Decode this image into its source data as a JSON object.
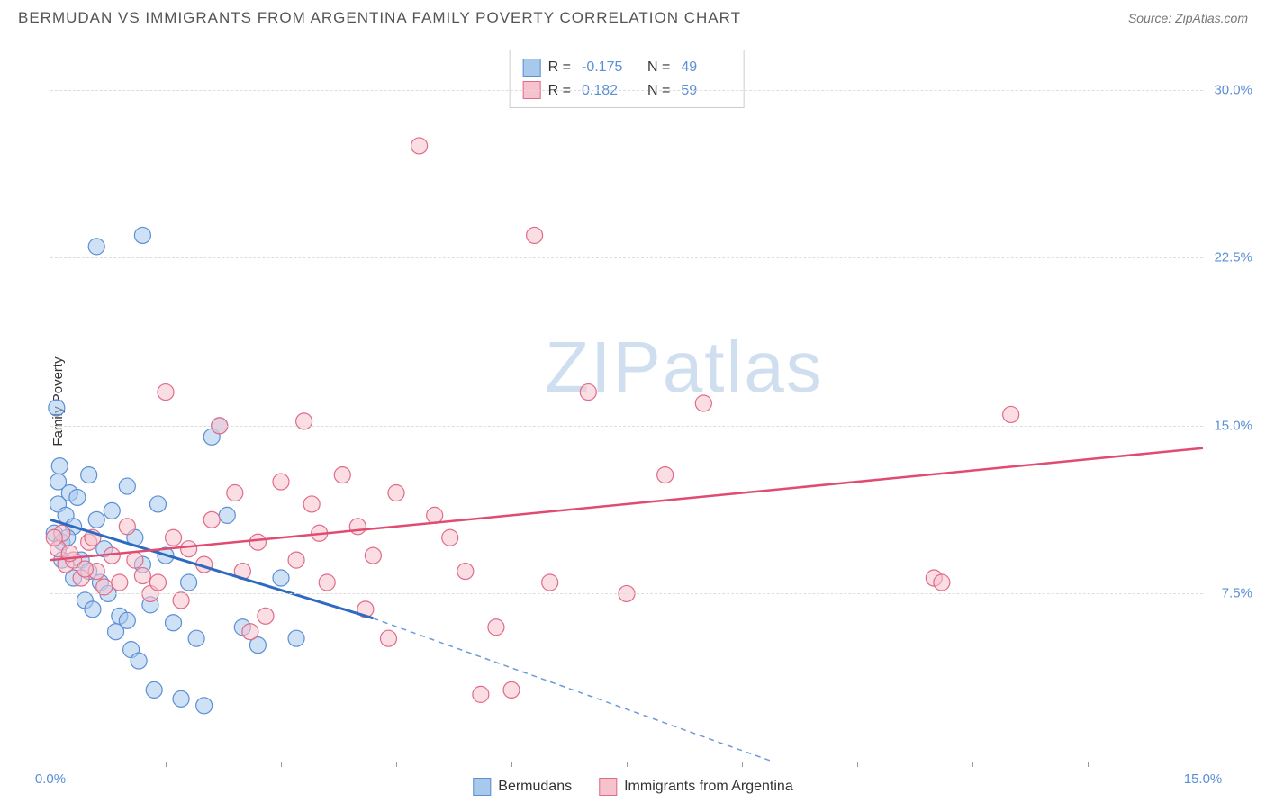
{
  "header": {
    "title": "BERMUDAN VS IMMIGRANTS FROM ARGENTINA FAMILY POVERTY CORRELATION CHART",
    "source_prefix": "Source: ",
    "source_name": "ZipAtlas.com"
  },
  "watermark": {
    "zip": "ZIP",
    "atlas": "atlas"
  },
  "chart": {
    "type": "scatter",
    "y_axis_label": "Family Poverty",
    "background_color": "#ffffff",
    "grid_color": "#dddddd",
    "axis_color": "#999999",
    "text_color_axis": "#5b8fd6",
    "x_range": [
      0,
      15
    ],
    "y_range": [
      0,
      32
    ],
    "y_ticks": [
      {
        "v": 7.5,
        "label": "7.5%"
      },
      {
        "v": 15.0,
        "label": "15.0%"
      },
      {
        "v": 22.5,
        "label": "22.5%"
      },
      {
        "v": 30.0,
        "label": "30.0%"
      }
    ],
    "x_ticks_minor": [
      1.5,
      3,
      4.5,
      6,
      7.5,
      9,
      10.5,
      12,
      13.5
    ],
    "x_labels": [
      {
        "v": 0,
        "label": "0.0%"
      },
      {
        "v": 15,
        "label": "15.0%"
      }
    ],
    "series": [
      {
        "id": "bermudans",
        "label": "Bermudans",
        "fill_color": "#a8c8ec",
        "stroke_color": "#5b8fd6",
        "line_color": "#2e6bc0",
        "line_dash_color": "#6a9bd8",
        "marker_radius": 9,
        "marker_opacity": 0.55,
        "R": "-0.175",
        "N": "49",
        "trend": {
          "x1": 0,
          "y1": 10.8,
          "x2": 4.2,
          "y2": 6.4,
          "solid_end_x": 4.2,
          "dash_end_x": 9.4,
          "dash_end_y": 0
        },
        "points": [
          [
            0.05,
            10.2
          ],
          [
            0.1,
            11.5
          ],
          [
            0.15,
            9.8
          ],
          [
            0.1,
            12.5
          ],
          [
            0.2,
            11.0
          ],
          [
            0.12,
            13.2
          ],
          [
            0.3,
            10.5
          ],
          [
            0.25,
            12.0
          ],
          [
            0.35,
            11.8
          ],
          [
            0.08,
            15.8
          ],
          [
            0.4,
            9.0
          ],
          [
            0.5,
            8.5
          ],
          [
            0.45,
            7.2
          ],
          [
            0.55,
            6.8
          ],
          [
            0.6,
            10.8
          ],
          [
            0.7,
            9.5
          ],
          [
            0.65,
            8.0
          ],
          [
            0.8,
            11.2
          ],
          [
            0.75,
            7.5
          ],
          [
            0.9,
            6.5
          ],
          [
            0.85,
            5.8
          ],
          [
            1.0,
            12.3
          ],
          [
            1.1,
            10.0
          ],
          [
            1.2,
            8.8
          ],
          [
            1.3,
            7.0
          ],
          [
            1.05,
            5.0
          ],
          [
            1.15,
            4.5
          ],
          [
            1.4,
            11.5
          ],
          [
            1.5,
            9.2
          ],
          [
            1.6,
            6.2
          ],
          [
            1.8,
            8.0
          ],
          [
            1.9,
            5.5
          ],
          [
            2.0,
            2.5
          ],
          [
            2.1,
            14.5
          ],
          [
            1.7,
            2.8
          ],
          [
            2.3,
            11.0
          ],
          [
            2.5,
            6.0
          ],
          [
            2.7,
            5.2
          ],
          [
            3.0,
            8.2
          ],
          [
            3.2,
            5.5
          ],
          [
            2.2,
            15.0
          ],
          [
            0.6,
            23.0
          ],
          [
            1.2,
            23.5
          ],
          [
            0.15,
            9.0
          ],
          [
            0.5,
            12.8
          ],
          [
            0.3,
            8.2
          ],
          [
            1.0,
            6.3
          ],
          [
            1.35,
            3.2
          ],
          [
            0.22,
            10.0
          ]
        ]
      },
      {
        "id": "argentina",
        "label": "Immigrants from Argentina",
        "fill_color": "#f5c2cd",
        "stroke_color": "#e06b87",
        "line_color": "#e04b72",
        "marker_radius": 9,
        "marker_opacity": 0.55,
        "R": "0.182",
        "N": "59",
        "trend": {
          "x1": 0,
          "y1": 9.0,
          "x2": 15,
          "y2": 14.0
        },
        "points": [
          [
            0.1,
            9.5
          ],
          [
            0.2,
            8.8
          ],
          [
            0.15,
            10.2
          ],
          [
            0.3,
            9.0
          ],
          [
            0.4,
            8.2
          ],
          [
            0.5,
            9.8
          ],
          [
            0.6,
            8.5
          ],
          [
            0.7,
            7.8
          ],
          [
            0.8,
            9.2
          ],
          [
            0.9,
            8.0
          ],
          [
            1.0,
            10.5
          ],
          [
            1.1,
            9.0
          ],
          [
            1.2,
            8.3
          ],
          [
            1.3,
            7.5
          ],
          [
            1.5,
            16.5
          ],
          [
            1.6,
            10.0
          ],
          [
            1.8,
            9.5
          ],
          [
            2.0,
            8.8
          ],
          [
            2.2,
            15.0
          ],
          [
            2.4,
            12.0
          ],
          [
            2.5,
            8.5
          ],
          [
            2.7,
            9.8
          ],
          [
            2.8,
            6.5
          ],
          [
            3.0,
            12.5
          ],
          [
            3.2,
            9.0
          ],
          [
            3.3,
            15.2
          ],
          [
            3.5,
            10.2
          ],
          [
            3.6,
            8.0
          ],
          [
            3.8,
            12.8
          ],
          [
            4.0,
            10.5
          ],
          [
            4.1,
            6.8
          ],
          [
            4.2,
            9.2
          ],
          [
            4.4,
            5.5
          ],
          [
            4.5,
            12.0
          ],
          [
            4.8,
            27.5
          ],
          [
            5.0,
            11.0
          ],
          [
            5.2,
            10.0
          ],
          [
            5.4,
            8.5
          ],
          [
            5.6,
            3.0
          ],
          [
            5.8,
            6.0
          ],
          [
            6.0,
            3.2
          ],
          [
            6.3,
            23.5
          ],
          [
            6.5,
            8.0
          ],
          [
            7.0,
            16.5
          ],
          [
            7.5,
            7.5
          ],
          [
            8.0,
            12.8
          ],
          [
            8.5,
            16.0
          ],
          [
            11.5,
            8.2
          ],
          [
            11.6,
            8.0
          ],
          [
            12.5,
            15.5
          ],
          [
            0.05,
            10.0
          ],
          [
            0.25,
            9.3
          ],
          [
            0.45,
            8.6
          ],
          [
            0.55,
            10.0
          ],
          [
            1.4,
            8.0
          ],
          [
            1.7,
            7.2
          ],
          [
            2.1,
            10.8
          ],
          [
            2.6,
            5.8
          ],
          [
            3.4,
            11.5
          ]
        ]
      }
    ],
    "legend_box": {
      "r_label": "R =",
      "n_label": "N ="
    },
    "bottom_legend": true
  }
}
